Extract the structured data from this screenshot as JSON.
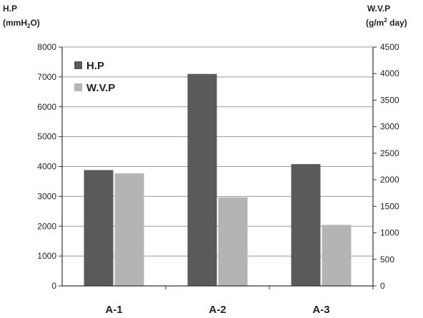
{
  "chart_data": {
    "type": "bar",
    "categories": [
      "A-1",
      "A-2",
      "A-3"
    ],
    "series": [
      {
        "name": "H.P",
        "axis": "left",
        "color": "#5a5a5a",
        "values": [
          3880,
          7100,
          4080
        ]
      },
      {
        "name": "W.V.P",
        "axis": "right",
        "color": "#b4b4b4",
        "values": [
          2120,
          1670,
          1150
        ]
      }
    ],
    "left_axis": {
      "title_line1": "H.P",
      "title_line2_pre": "(mmH",
      "title_line2_sub": "2",
      "title_line2_post": "O)",
      "ylim": [
        0,
        8000
      ],
      "ticks": [
        0,
        1000,
        2000,
        3000,
        4000,
        5000,
        6000,
        7000,
        8000
      ]
    },
    "right_axis": {
      "title_line1": "W.V.P",
      "title_line2_pre": "(g/m",
      "title_line2_sup": "2",
      "title_line2_post": " day)",
      "ylim": [
        0,
        4500
      ],
      "ticks": [
        0,
        500,
        1000,
        1500,
        2000,
        2500,
        3000,
        3500,
        4000,
        4500
      ]
    },
    "grid": true,
    "legend_position": "top-left"
  }
}
